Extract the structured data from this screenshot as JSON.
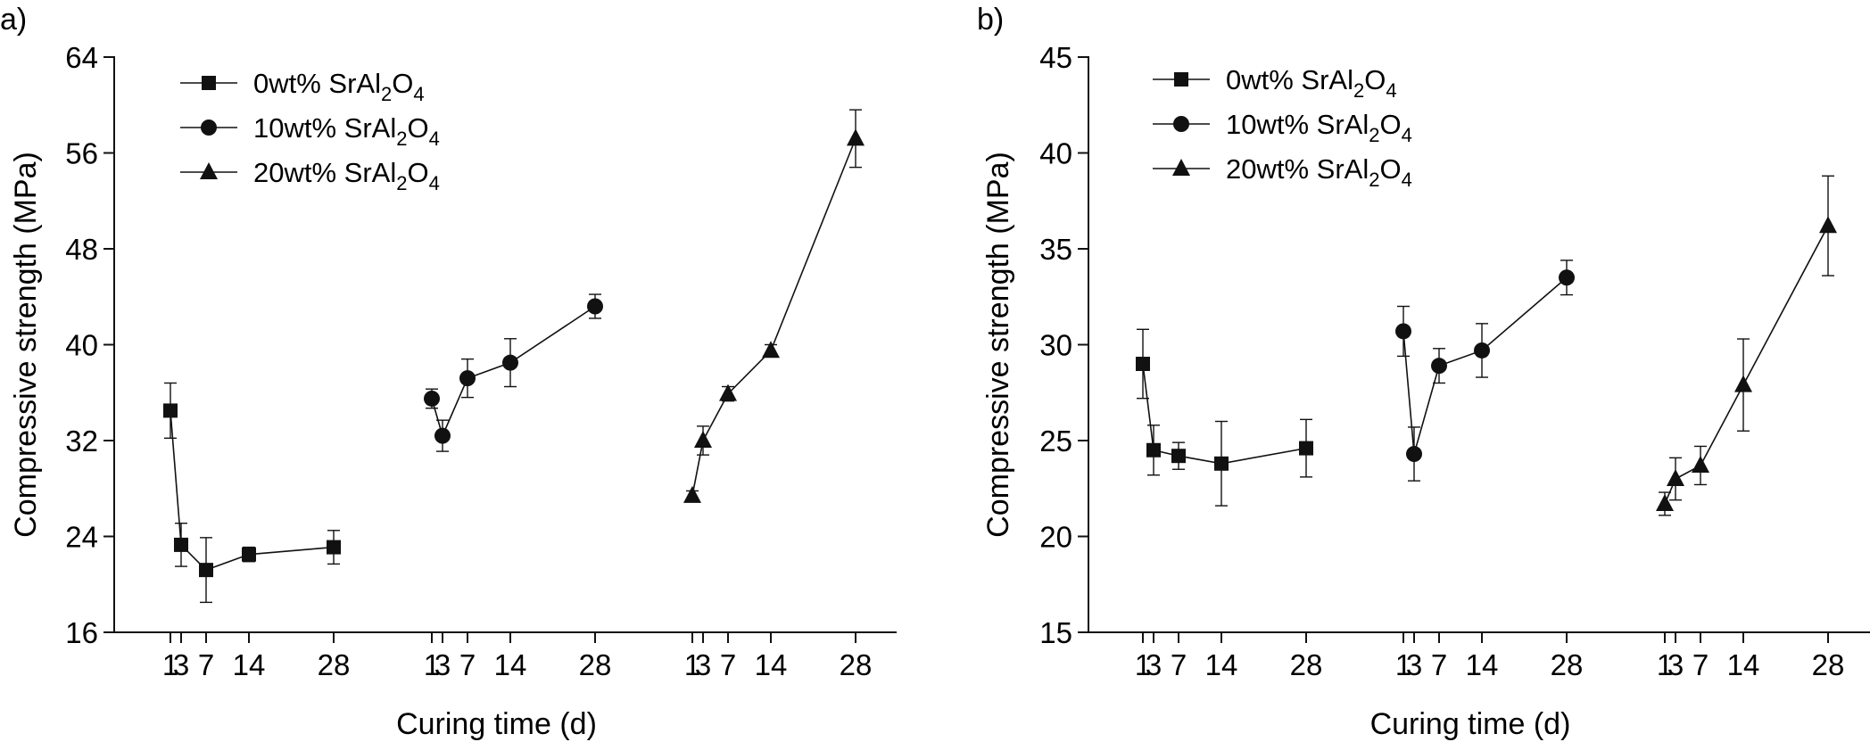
{
  "chart_data": [
    {
      "type": "line",
      "panel_label": "a)",
      "xlabel": "Curing time (d)",
      "ylabel": "Compressive strength (MPa)",
      "ylim": [
        16,
        64
      ],
      "yticks": [
        16,
        24,
        32,
        40,
        48,
        56,
        64
      ],
      "x_tick_labels": [
        "1",
        "3",
        "7",
        "14",
        "28"
      ],
      "legend_position": "top-left",
      "series": [
        {
          "name_prefix": "0wt% SrAl",
          "sub1": "2",
          "name_mid": "O",
          "sub2": "4",
          "marker": "square",
          "x": [
            1,
            3,
            7,
            14,
            28
          ],
          "y": [
            34.5,
            23.3,
            21.2,
            22.5,
            23.1
          ],
          "err": [
            2.3,
            1.8,
            2.7,
            0.6,
            1.4
          ]
        },
        {
          "name_prefix": "10wt% SrAl",
          "sub1": "2",
          "name_mid": "O",
          "sub2": "4",
          "marker": "circle",
          "x": [
            1,
            3,
            7,
            14,
            28
          ],
          "y": [
            35.5,
            32.4,
            37.2,
            38.5,
            43.2
          ],
          "err": [
            0.8,
            1.3,
            1.6,
            2.0,
            1.0
          ]
        },
        {
          "name_prefix": "20wt% SrAl",
          "sub1": "2",
          "name_mid": "O",
          "sub2": "4",
          "marker": "triangle",
          "x": [
            1,
            3,
            7,
            14,
            28
          ],
          "y": [
            27.4,
            32.0,
            35.9,
            39.5,
            57.2
          ],
          "err": [
            0.4,
            1.2,
            0.6,
            0.5,
            2.4
          ]
        }
      ]
    },
    {
      "type": "line",
      "panel_label": "b)",
      "xlabel": "Curing time (d)",
      "ylabel": "Compressive strength (MPa)",
      "ylim": [
        15,
        45
      ],
      "yticks": [
        15,
        20,
        25,
        30,
        35,
        40,
        45
      ],
      "x_tick_labels": [
        "1",
        "3",
        "7",
        "14",
        "28"
      ],
      "legend_position": "top-left",
      "series": [
        {
          "name_prefix": "0wt% SrAl",
          "sub1": "2",
          "name_mid": "O",
          "sub2": "4",
          "marker": "square",
          "x": [
            1,
            3,
            7,
            14,
            28
          ],
          "y": [
            29.0,
            24.5,
            24.2,
            23.8,
            24.6
          ],
          "err": [
            1.8,
            1.3,
            0.7,
            2.2,
            1.5
          ]
        },
        {
          "name_prefix": "10wt% SrAl",
          "sub1": "2",
          "name_mid": "O",
          "sub2": "4",
          "marker": "circle",
          "x": [
            1,
            3,
            7,
            14,
            28
          ],
          "y": [
            30.7,
            24.3,
            28.9,
            29.7,
            33.5
          ],
          "err": [
            1.3,
            1.4,
            0.9,
            1.4,
            0.9
          ]
        },
        {
          "name_prefix": "20wt% SrAl",
          "sub1": "2",
          "name_mid": "O",
          "sub2": "4",
          "marker": "triangle",
          "x": [
            1,
            3,
            7,
            14,
            28
          ],
          "y": [
            21.7,
            23.0,
            23.7,
            27.9,
            36.2
          ],
          "err": [
            0.6,
            1.1,
            1.0,
            2.4,
            2.6
          ]
        }
      ]
    }
  ]
}
